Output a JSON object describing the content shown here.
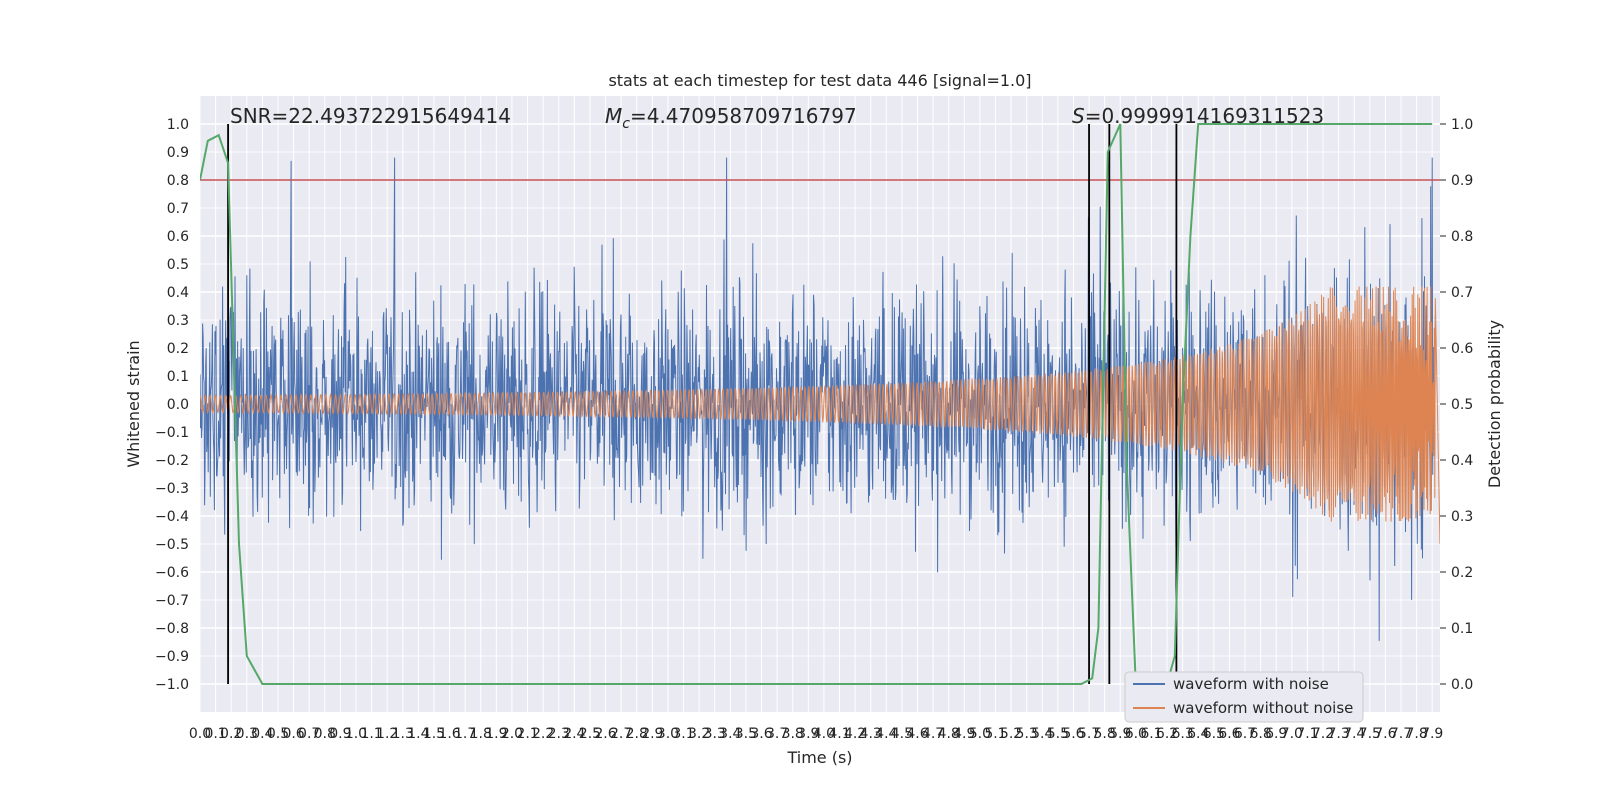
{
  "chart_data": {
    "type": "line",
    "title": "stats at each timestep for test data 446 [signal=1.0]",
    "xlabel": "Time (s)",
    "ylabel": "Whitened strain",
    "y2label": "Detection probability",
    "xlim": [
      0.0,
      7.95
    ],
    "ylim": [
      -1.1,
      1.1
    ],
    "y2lim": [
      -0.05,
      1.05
    ],
    "x_ticks": [
      "0.0",
      "0.1",
      "0.2",
      "0.3",
      "0.4",
      "0.5",
      "0.6",
      "0.7",
      "0.8",
      "0.9",
      "1.0",
      "1.1",
      "1.2",
      "1.3",
      "1.4",
      "1.5",
      "1.6",
      "1.7",
      "1.8",
      "1.9",
      "2.0",
      "2.1",
      "2.2",
      "2.3",
      "2.4",
      "2.5",
      "2.6",
      "2.7",
      "2.8",
      "2.9",
      "3.0",
      "3.1",
      "3.2",
      "3.3",
      "3.4",
      "3.5",
      "3.6",
      "3.7",
      "3.8",
      "3.9",
      "4.0",
      "4.1",
      "4.2",
      "4.3",
      "4.4",
      "4.5",
      "4.6",
      "4.7",
      "4.8",
      "4.9",
      "5.0",
      "5.1",
      "5.2",
      "5.3",
      "5.4",
      "5.5",
      "5.6",
      "5.7",
      "5.8",
      "5.9",
      "6.0",
      "6.1",
      "6.2",
      "6.3",
      "6.4",
      "6.5",
      "6.6",
      "6.7",
      "6.8",
      "6.9",
      "7.0",
      "7.1",
      "7.2",
      "7.3",
      "7.4",
      "7.5",
      "7.6",
      "7.7",
      "7.8",
      "7.9"
    ],
    "y_ticks": [
      "-1.0",
      "-0.9",
      "-0.8",
      "-0.7",
      "-0.6",
      "-0.5",
      "-0.4",
      "-0.3",
      "-0.2",
      "-0.1",
      "0.0",
      "0.1",
      "0.2",
      "0.3",
      "0.4",
      "0.5",
      "0.6",
      "0.7",
      "0.8",
      "0.9",
      "1.0"
    ],
    "y2_ticks": [
      "0.0",
      "0.1",
      "0.2",
      "0.3",
      "0.4",
      "0.5",
      "0.6",
      "0.7",
      "0.8",
      "0.9",
      "1.0"
    ],
    "grid": true,
    "series": [
      {
        "name": "waveform with noise",
        "color": "#4c72b0",
        "axis": "left",
        "style": "dense noise, amplitude approx 0.6, peaks to 0.85 and -1.0"
      },
      {
        "name": "waveform without noise",
        "color": "#dd8452",
        "axis": "left",
        "style": "chirp, amplitude 0.03 at start rising to 0.4 near 7.9 s"
      },
      {
        "name": "",
        "color": "#55a868",
        "axis": "right",
        "x": [
          0.0,
          0.05,
          0.12,
          0.18,
          0.25,
          0.3,
          0.4,
          0.5,
          0.6,
          5.65,
          5.72,
          5.76,
          5.82,
          5.9,
          5.94,
          6.0,
          6.2,
          6.25,
          6.3,
          6.35,
          6.4,
          7.9
        ],
        "values": [
          0.9,
          0.97,
          0.98,
          0.93,
          0.25,
          0.05,
          0.0,
          0.0,
          0.0,
          0.0,
          0.01,
          0.1,
          0.95,
          1.0,
          0.4,
          0.0,
          0.0,
          0.05,
          0.5,
          0.8,
          1.0,
          1.0
        ]
      }
    ],
    "hline": {
      "y": 0.8,
      "color": "#c44e52"
    },
    "vlines_x": [
      0.18,
      5.7,
      5.83,
      6.26
    ],
    "annotations": {
      "snr": "SNR=22.493722915649414",
      "mc_symbol": "M",
      "mc_sub": "c",
      "mc_value": "=4.470958709716797",
      "s_symbol": "S",
      "s_value": "=0.9999914169311523"
    },
    "legend": {
      "position": "lower-right"
    },
    "colors": {
      "background": "#eaeaf2",
      "grid": "#ffffff",
      "text": "#262626",
      "vline": "#000000"
    }
  }
}
